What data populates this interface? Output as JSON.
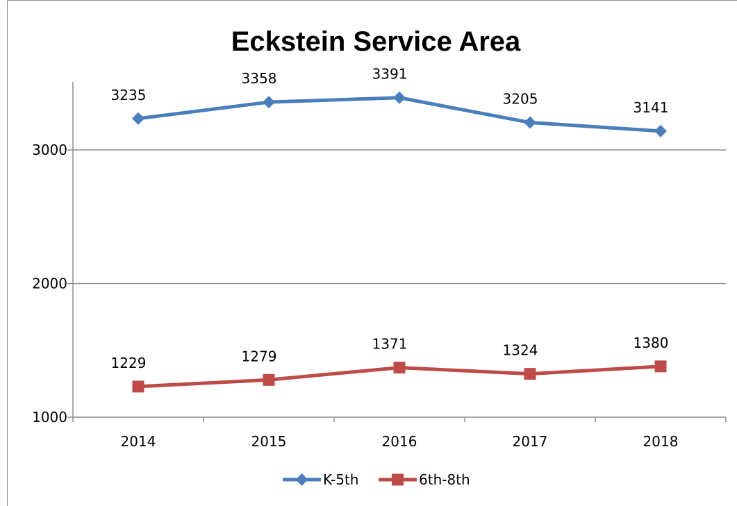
{
  "chart_data": {
    "type": "line",
    "title": "Eckstein Service Area",
    "xlabel": "",
    "ylabel": "",
    "categories": [
      "2014",
      "2015",
      "2016",
      "2017",
      "2018"
    ],
    "yticks": [
      "1000",
      "2000",
      "3000"
    ],
    "ylim": [
      1000,
      3500
    ],
    "grid": true,
    "legend_position": "bottom",
    "series": [
      {
        "name": "K-5th",
        "values": [
          3235,
          3358,
          3391,
          3205,
          3141
        ],
        "labels": [
          "3235",
          "3358",
          "3391",
          "3205",
          "3141"
        ],
        "color": "#4a7ebb",
        "marker": "diamond"
      },
      {
        "name": "6th-8th",
        "values": [
          1229,
          1279,
          1371,
          1324,
          1380
        ],
        "labels": [
          "1229",
          "1279",
          "1371",
          "1324",
          "1380"
        ],
        "color": "#be4b48",
        "marker": "square"
      }
    ]
  }
}
